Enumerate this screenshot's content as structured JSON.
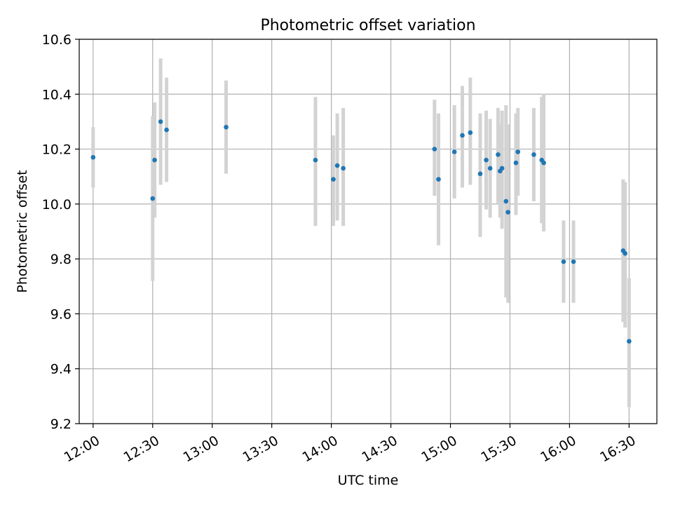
{
  "chart_data": {
    "type": "scatter",
    "title": "Photometric offset variation",
    "xlabel": "UTC time",
    "ylabel": "Photometric offset",
    "ylim": [
      9.2,
      10.6
    ],
    "xlim": [
      "11:53",
      "16:44"
    ],
    "grid": true,
    "y_ticks": [
      "9.2",
      "9.4",
      "9.6",
      "9.8",
      "10.0",
      "10.2",
      "10.4",
      "10.6"
    ],
    "x_ticks": [
      "12:00",
      "12:30",
      "13:00",
      "13:30",
      "14:00",
      "14:30",
      "15:00",
      "15:30",
      "16:00",
      "16:30"
    ],
    "colors": {
      "point": "#1f77b4",
      "errorbar": "#d3d3d3",
      "grid": "#b0b0b0"
    },
    "series": [
      {
        "points": [
          {
            "x": "12:00",
            "y": 10.17,
            "ylow": 10.06,
            "yhigh": 10.28
          },
          {
            "x": "12:30",
            "y": 10.02,
            "ylow": 9.72,
            "yhigh": 10.32
          },
          {
            "x": "12:31",
            "y": 10.16,
            "ylow": 9.95,
            "yhigh": 10.37
          },
          {
            "x": "12:34",
            "y": 10.3,
            "ylow": 10.07,
            "yhigh": 10.53
          },
          {
            "x": "12:37",
            "y": 10.27,
            "ylow": 10.08,
            "yhigh": 10.46
          },
          {
            "x": "13:07",
            "y": 10.28,
            "ylow": 10.11,
            "yhigh": 10.45
          },
          {
            "x": "13:52",
            "y": 10.16,
            "ylow": 9.92,
            "yhigh": 10.39
          },
          {
            "x": "14:01",
            "y": 10.09,
            "ylow": 9.92,
            "yhigh": 10.25
          },
          {
            "x": "14:03",
            "y": 10.14,
            "ylow": 9.94,
            "yhigh": 10.33
          },
          {
            "x": "14:06",
            "y": 10.13,
            "ylow": 9.92,
            "yhigh": 10.35
          },
          {
            "x": "14:52",
            "y": 10.2,
            "ylow": 10.03,
            "yhigh": 10.38
          },
          {
            "x": "14:54",
            "y": 10.09,
            "ylow": 9.85,
            "yhigh": 10.33
          },
          {
            "x": "15:02",
            "y": 10.19,
            "ylow": 10.02,
            "yhigh": 10.36
          },
          {
            "x": "15:06",
            "y": 10.25,
            "ylow": 10.06,
            "yhigh": 10.43
          },
          {
            "x": "15:10",
            "y": 10.26,
            "ylow": 10.07,
            "yhigh": 10.46
          },
          {
            "x": "15:15",
            "y": 10.11,
            "ylow": 9.88,
            "yhigh": 10.33
          },
          {
            "x": "15:18",
            "y": 10.16,
            "ylow": 9.98,
            "yhigh": 10.34
          },
          {
            "x": "15:20",
            "y": 10.13,
            "ylow": 9.95,
            "yhigh": 10.31
          },
          {
            "x": "15:24",
            "y": 10.18,
            "ylow": 10.0,
            "yhigh": 10.35
          },
          {
            "x": "15:25",
            "y": 10.12,
            "ylow": 9.95,
            "yhigh": 10.29
          },
          {
            "x": "15:26",
            "y": 10.13,
            "ylow": 9.91,
            "yhigh": 10.34
          },
          {
            "x": "15:28",
            "y": 10.01,
            "ylow": 9.66,
            "yhigh": 10.36
          },
          {
            "x": "15:29",
            "y": 9.97,
            "ylow": 9.64,
            "yhigh": 10.29
          },
          {
            "x": "15:33",
            "y": 10.15,
            "ylow": 9.96,
            "yhigh": 10.33
          },
          {
            "x": "15:34",
            "y": 10.19,
            "ylow": 10.03,
            "yhigh": 10.35
          },
          {
            "x": "15:42",
            "y": 10.18,
            "ylow": 10.01,
            "yhigh": 10.35
          },
          {
            "x": "15:46",
            "y": 10.16,
            "ylow": 9.93,
            "yhigh": 10.39
          },
          {
            "x": "15:47",
            "y": 10.15,
            "ylow": 9.9,
            "yhigh": 10.4
          },
          {
            "x": "15:57",
            "y": 9.79,
            "ylow": 9.64,
            "yhigh": 9.94
          },
          {
            "x": "16:02",
            "y": 9.79,
            "ylow": 9.64,
            "yhigh": 9.94
          },
          {
            "x": "16:27",
            "y": 9.83,
            "ylow": 9.57,
            "yhigh": 10.09
          },
          {
            "x": "16:28",
            "y": 9.82,
            "ylow": 9.55,
            "yhigh": 10.08
          },
          {
            "x": "16:30",
            "y": 9.5,
            "ylow": 9.26,
            "yhigh": 9.73
          }
        ]
      }
    ]
  }
}
